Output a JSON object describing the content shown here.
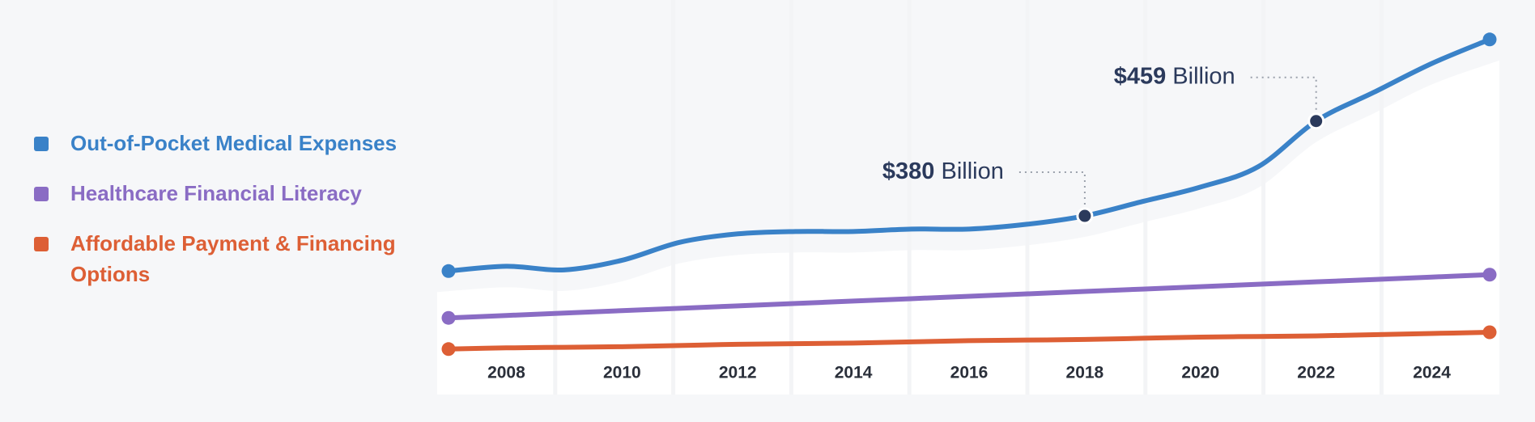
{
  "chart_data": {
    "type": "line",
    "x": [
      2007,
      2008,
      2009,
      2010,
      2011,
      2012,
      2013,
      2014,
      2015,
      2016,
      2017,
      2018,
      2019,
      2020,
      2021,
      2022,
      2023,
      2024,
      2025
    ],
    "series": [
      {
        "name": "Out-of-Pocket Medical Expenses",
        "color": "#3a82c8",
        "values": [
          334,
          338,
          335,
          343,
          358,
          365,
          367,
          367,
          369,
          369,
          373,
          380,
          392,
          404,
          421,
          459,
          483,
          507,
          527
        ]
      },
      {
        "name": "Healthcare Financial Literacy",
        "color": "#8a6cc4",
        "values": [
          295,
          297,
          299,
          301,
          303,
          305,
          307,
          309,
          311,
          313,
          315,
          317,
          319,
          321,
          323,
          325,
          327,
          329,
          331
        ]
      },
      {
        "name": "Affordable Payment & Financing Options",
        "color": "#dd5f35",
        "values": [
          269,
          270,
          270.5,
          271,
          272,
          273,
          273.5,
          274,
          275,
          276,
          276.5,
          277,
          278,
          279,
          279.5,
          280,
          281,
          282,
          283
        ]
      }
    ],
    "xlim": [
      2007,
      2025
    ],
    "ylim": [
      250,
      540
    ],
    "xticks": [
      2008,
      2010,
      2012,
      2014,
      2016,
      2018,
      2020,
      2022,
      2024
    ],
    "annotations": [
      {
        "x": 2018,
        "value": 380,
        "label": "$380",
        "unit": "Billion"
      },
      {
        "x": 2022,
        "value": 459,
        "label": "$459",
        "unit": "Billion"
      }
    ]
  }
}
